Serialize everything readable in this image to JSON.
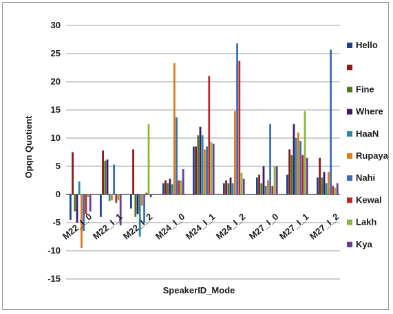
{
  "chart_data": {
    "type": "bar",
    "title": "",
    "xlabel": "SpeakerID_Mode",
    "ylabel": "Opqn Quotient",
    "ylim": [
      -15,
      30
    ],
    "yticks": [
      -15,
      -10,
      -5,
      0,
      5,
      10,
      15,
      20,
      25,
      30
    ],
    "grid": true,
    "legend_position": "right",
    "categories": [
      "M22_I_0",
      "M22_I_1",
      "M22_I_2",
      "M24_I_0",
      "M24_I_1",
      "M24_I_2",
      "M27_I_0",
      "M27_I_1",
      "M27_I_2"
    ],
    "groups": [
      [
        0,
        1,
        2
      ],
      [
        3,
        4,
        5
      ],
      [
        6,
        7,
        8
      ]
    ],
    "series": [
      {
        "name": "Hello",
        "color": "#1f3f8f",
        "values": [
          -4.5,
          -4.0,
          -2.5,
          2.0,
          8.5,
          2.0,
          3.0,
          3.5,
          3.0
        ]
      },
      {
        "name": "",
        "color": "#8b1a1a",
        "values": [
          7.5,
          7.8,
          8.0,
          2.5,
          8.5,
          2.5,
          3.5,
          8.0,
          6.5
        ]
      },
      {
        "name": "Fine",
        "color": "#4d7a1f",
        "values": [
          -3.0,
          6.0,
          -4.0,
          2.0,
          10.5,
          2.0,
          2.0,
          7.0,
          3.0
        ]
      },
      {
        "name": "Where",
        "color": "#3b1a6b",
        "values": [
          -5.0,
          6.2,
          -3.5,
          2.8,
          12.0,
          3.0,
          5.0,
          12.5,
          4.0
        ]
      },
      {
        "name": "HaaN",
        "color": "#2a8aa0",
        "values": [
          2.3,
          -1.2,
          -7.5,
          1.8,
          10.5,
          2.0,
          1.5,
          10.0,
          2.0
        ]
      },
      {
        "name": "Rupaya",
        "color": "#e07a1a",
        "values": [
          -9.5,
          -1.0,
          -2.0,
          23.3,
          8.0,
          14.8,
          2.5,
          11.0,
          4.0
        ]
      },
      {
        "name": "Nahi",
        "color": "#3a6cb8",
        "values": [
          -6.5,
          5.3,
          -5.0,
          13.7,
          8.5,
          26.8,
          12.5,
          9.5,
          25.7
        ]
      },
      {
        "name": "Kewal",
        "color": "#c02828",
        "values": [
          -3.5,
          -1.5,
          0.3,
          2.5,
          21.0,
          23.7,
          1.5,
          7.0,
          1.5
        ]
      },
      {
        "name": "Lakh",
        "color": "#8ab83a",
        "values": [
          -0.5,
          -1.0,
          12.5,
          2.5,
          9.3,
          3.8,
          5.0,
          14.8,
          1.2
        ]
      },
      {
        "name": "Kya",
        "color": "#6a3a9a",
        "values": [
          -3.0,
          -5.5,
          -0.5,
          4.5,
          9.0,
          2.8,
          5.0,
          6.5,
          2.0
        ]
      }
    ]
  }
}
